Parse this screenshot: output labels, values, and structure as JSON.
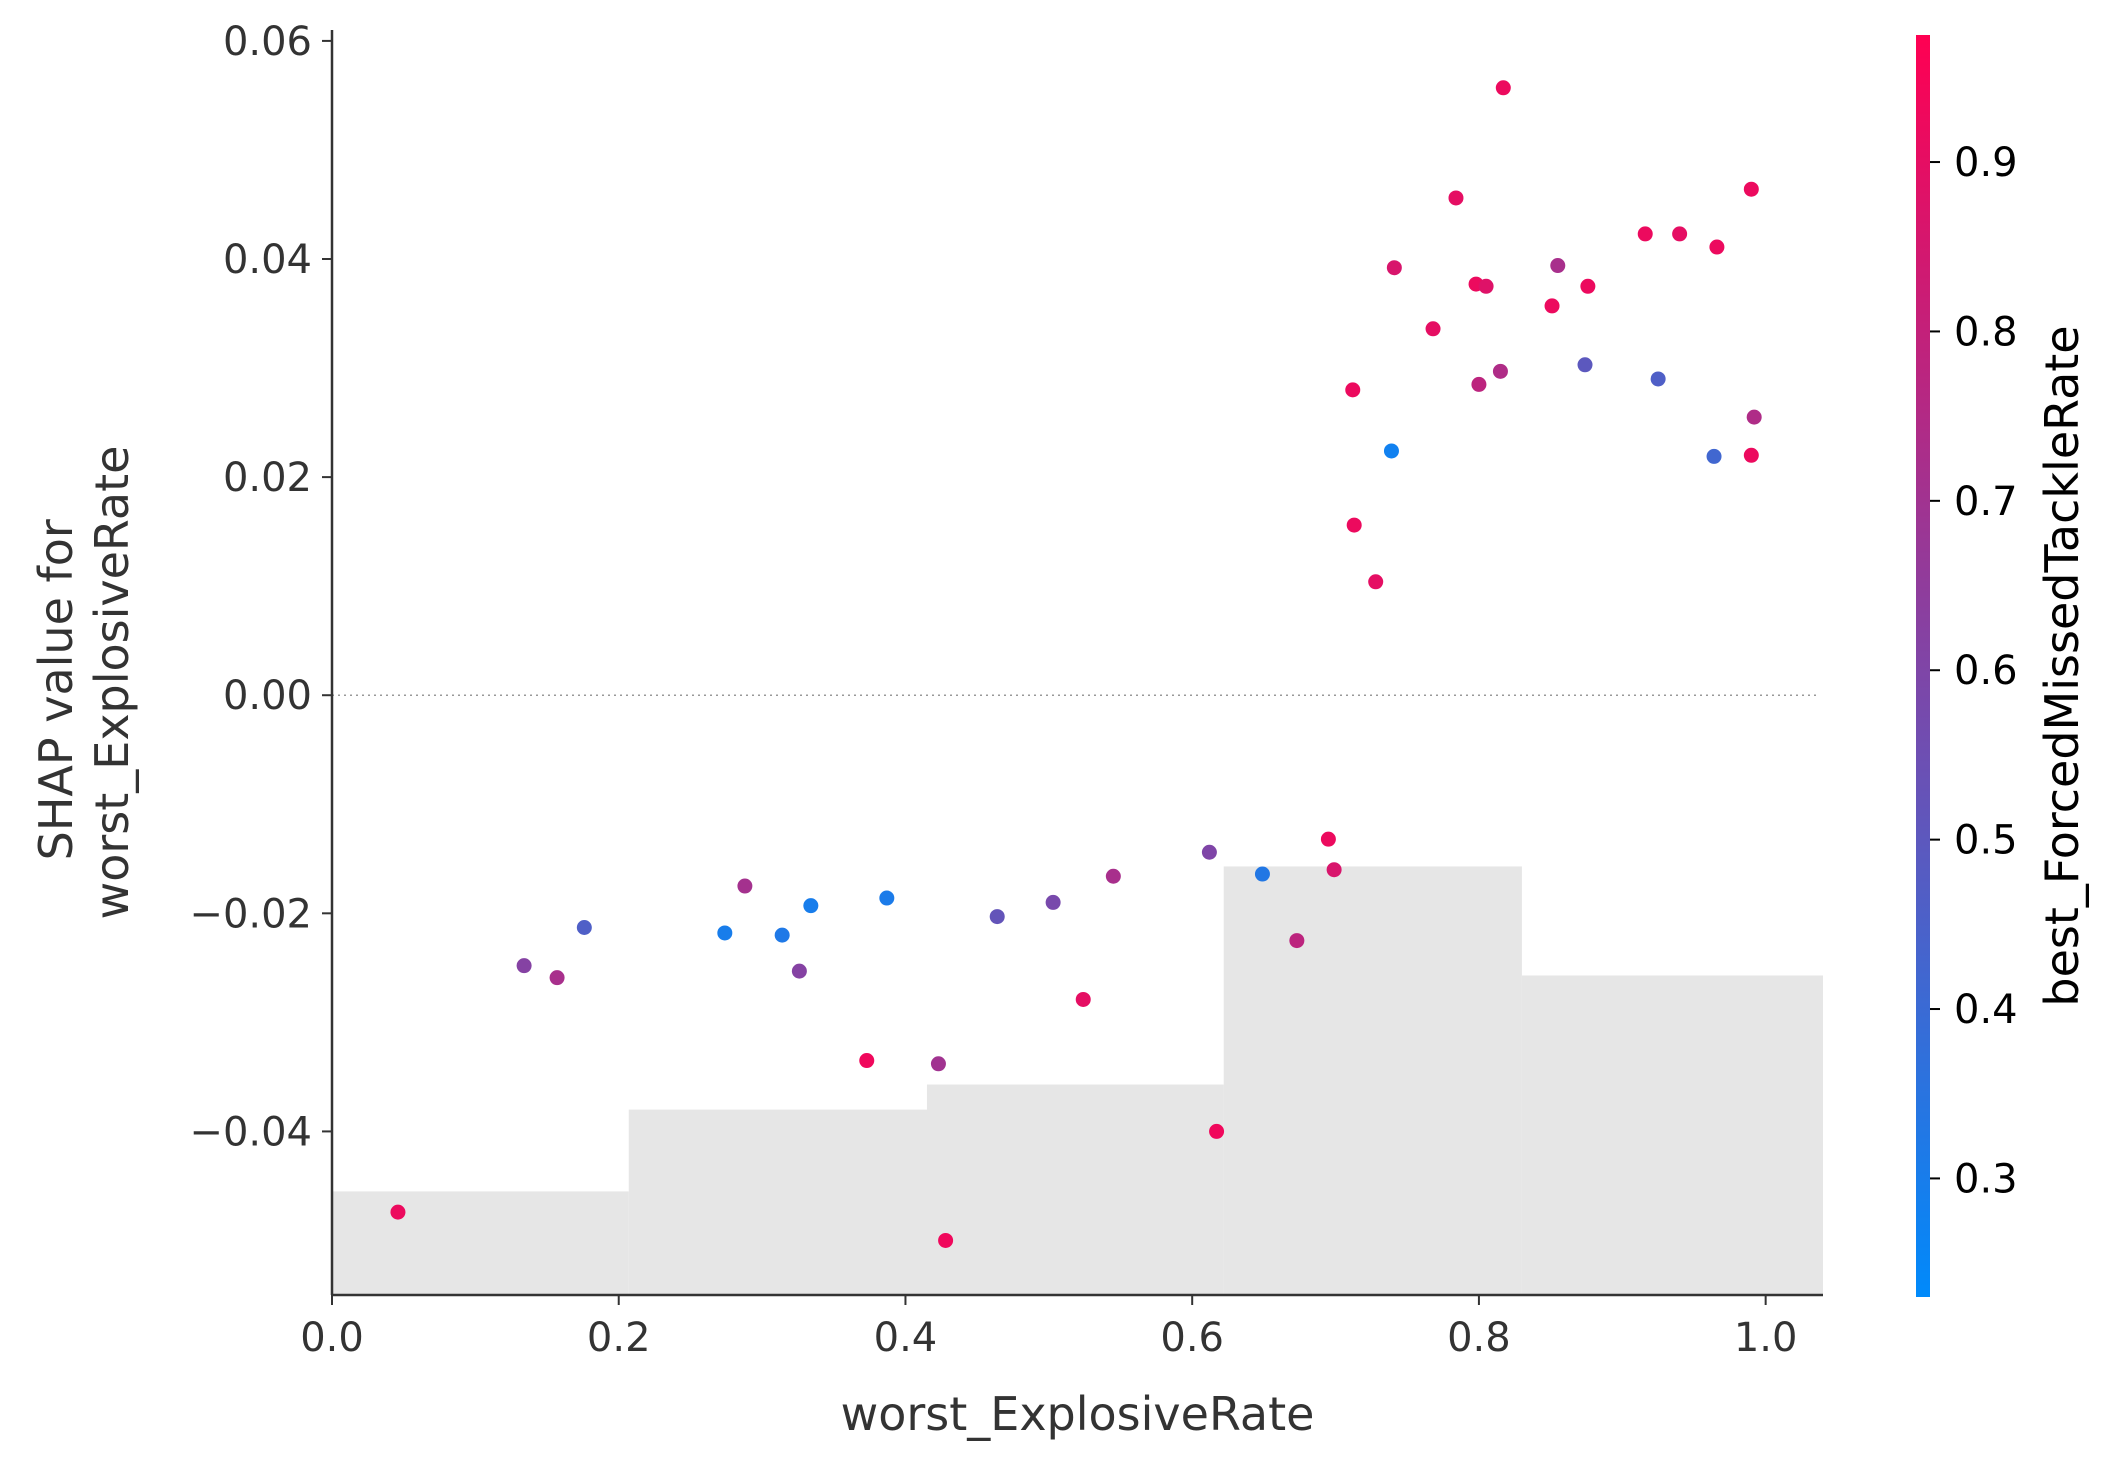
{
  "chart_data": {
    "type": "scatter",
    "xlabel": "worst_ExplosiveRate",
    "ylabel_lines": [
      "SHAP value for",
      "worst_ExplosiveRate"
    ],
    "xlim": [
      0.0,
      1.04
    ],
    "ylim": [
      -0.055,
      0.061
    ],
    "x_ticks": [
      0.0,
      0.2,
      0.4,
      0.6,
      0.8,
      1.0
    ],
    "x_tick_labels": [
      "0.0",
      "0.2",
      "0.4",
      "0.6",
      "0.8",
      "1.0"
    ],
    "y_ticks": [
      -0.04,
      -0.02,
      0.0,
      0.02,
      0.04,
      0.06
    ],
    "y_tick_labels": [
      "−0.04",
      "−0.02",
      "0.00",
      "0.02",
      "0.04",
      "0.06"
    ],
    "zero_line": {
      "value": 0.0,
      "style": "dotted",
      "color": "#999999"
    },
    "histogram_background": {
      "color": "#e6e6e6",
      "bins": [
        {
          "x0": 0.0,
          "x1": 0.207,
          "top": -0.0455
        },
        {
          "x0": 0.207,
          "x1": 0.415,
          "top": -0.038
        },
        {
          "x0": 0.415,
          "x1": 0.622,
          "top": -0.0357
        },
        {
          "x0": 0.622,
          "x1": 0.83,
          "top": -0.0157
        },
        {
          "x0": 0.83,
          "x1": 1.04,
          "top": -0.0257
        }
      ]
    },
    "colorbar": {
      "label": "best_ForcedMissedTackleRate",
      "range": [
        0.23,
        0.975
      ],
      "ticks": [
        0.3,
        0.4,
        0.5,
        0.6,
        0.7,
        0.8,
        0.9
      ],
      "tick_labels": [
        "0.3",
        "0.4",
        "0.5",
        "0.6",
        "0.7",
        "0.8",
        "0.9"
      ],
      "colormap": [
        "#008afb",
        "#ff0052"
      ]
    },
    "points": [
      {
        "x": 0.046,
        "y": -0.0474,
        "c": 0.92
      },
      {
        "x": 0.134,
        "y": -0.0248,
        "c": 0.62
      },
      {
        "x": 0.157,
        "y": -0.0259,
        "c": 0.72
      },
      {
        "x": 0.176,
        "y": -0.0213,
        "c": 0.46
      },
      {
        "x": 0.274,
        "y": -0.0218,
        "c": 0.3
      },
      {
        "x": 0.288,
        "y": -0.0175,
        "c": 0.71
      },
      {
        "x": 0.314,
        "y": -0.022,
        "c": 0.32
      },
      {
        "x": 0.326,
        "y": -0.0253,
        "c": 0.62
      },
      {
        "x": 0.334,
        "y": -0.0193,
        "c": 0.3
      },
      {
        "x": 0.373,
        "y": -0.0335,
        "c": 0.93
      },
      {
        "x": 0.387,
        "y": -0.0186,
        "c": 0.31
      },
      {
        "x": 0.423,
        "y": -0.0338,
        "c": 0.7
      },
      {
        "x": 0.428,
        "y": -0.05,
        "c": 0.93
      },
      {
        "x": 0.464,
        "y": -0.0203,
        "c": 0.52
      },
      {
        "x": 0.503,
        "y": -0.019,
        "c": 0.58
      },
      {
        "x": 0.524,
        "y": -0.0279,
        "c": 0.9
      },
      {
        "x": 0.545,
        "y": -0.0166,
        "c": 0.72
      },
      {
        "x": 0.612,
        "y": -0.0144,
        "c": 0.6
      },
      {
        "x": 0.617,
        "y": -0.04,
        "c": 0.93
      },
      {
        "x": 0.649,
        "y": -0.0164,
        "c": 0.33
      },
      {
        "x": 0.673,
        "y": -0.0225,
        "c": 0.78
      },
      {
        "x": 0.695,
        "y": -0.0132,
        "c": 0.92
      },
      {
        "x": 0.699,
        "y": -0.016,
        "c": 0.86
      },
      {
        "x": 0.712,
        "y": 0.028,
        "c": 0.92
      },
      {
        "x": 0.713,
        "y": 0.0156,
        "c": 0.92
      },
      {
        "x": 0.728,
        "y": 0.0104,
        "c": 0.9
      },
      {
        "x": 0.739,
        "y": 0.0224,
        "c": 0.28
      },
      {
        "x": 0.741,
        "y": 0.0392,
        "c": 0.86
      },
      {
        "x": 0.768,
        "y": 0.0336,
        "c": 0.9
      },
      {
        "x": 0.784,
        "y": 0.0456,
        "c": 0.9
      },
      {
        "x": 0.798,
        "y": 0.0377,
        "c": 0.92
      },
      {
        "x": 0.8,
        "y": 0.0285,
        "c": 0.78
      },
      {
        "x": 0.805,
        "y": 0.0375,
        "c": 0.88
      },
      {
        "x": 0.815,
        "y": 0.0297,
        "c": 0.74
      },
      {
        "x": 0.817,
        "y": 0.0557,
        "c": 0.92
      },
      {
        "x": 0.851,
        "y": 0.0357,
        "c": 0.92
      },
      {
        "x": 0.855,
        "y": 0.0394,
        "c": 0.72
      },
      {
        "x": 0.874,
        "y": 0.0303,
        "c": 0.5
      },
      {
        "x": 0.876,
        "y": 0.0375,
        "c": 0.92
      },
      {
        "x": 0.916,
        "y": 0.0423,
        "c": 0.92
      },
      {
        "x": 0.925,
        "y": 0.029,
        "c": 0.46
      },
      {
        "x": 0.94,
        "y": 0.0423,
        "c": 0.9
      },
      {
        "x": 0.964,
        "y": 0.0219,
        "c": 0.42
      },
      {
        "x": 0.966,
        "y": 0.0411,
        "c": 0.92
      },
      {
        "x": 0.99,
        "y": 0.0464,
        "c": 0.92
      },
      {
        "x": 0.99,
        "y": 0.022,
        "c": 0.92
      },
      {
        "x": 0.992,
        "y": 0.0255,
        "c": 0.74
      }
    ]
  }
}
